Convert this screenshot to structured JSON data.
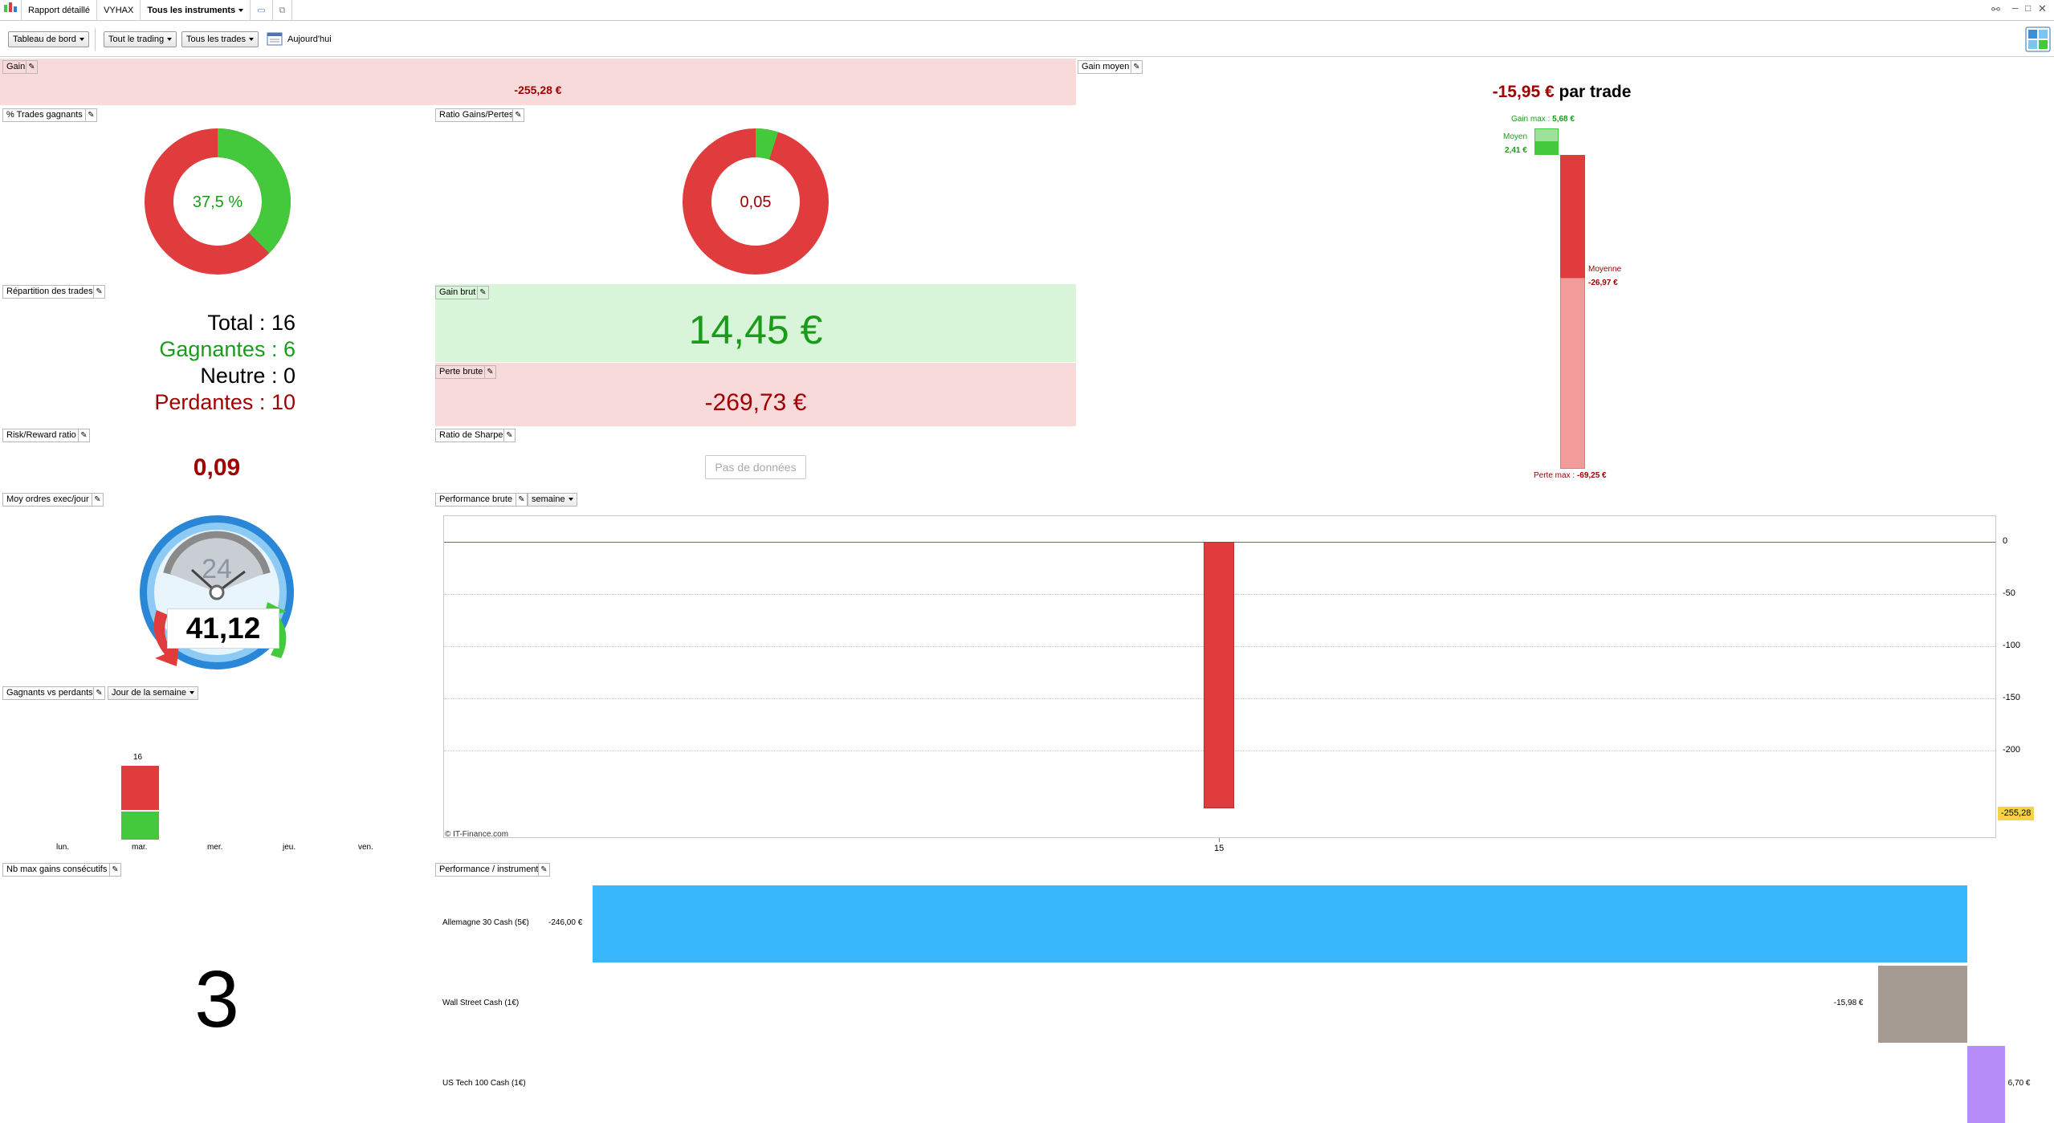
{
  "window": {
    "tab_report": "Rapport détaillé",
    "account": "VYHAX",
    "instruments_selector": "Tous les instruments"
  },
  "toolbar": {
    "dashboard": "Tableau de bord",
    "trading_filter": "Tout le trading",
    "trades_filter": "Tous les trades",
    "date_label": "Aujourd'hui"
  },
  "gain": {
    "label": "Gain",
    "value": "-255,28 €"
  },
  "avg_gain": {
    "label": "Gain moyen",
    "value": "-15,95 €",
    "suffix": "par trade",
    "max_gain_label": "Gain max :",
    "max_gain_value": "5,68 €",
    "avg_label": "Moyen",
    "avg_win_value": "2,41 €",
    "avg_loss_label": "Moyenne",
    "avg_loss_value": "-26,97 €",
    "max_loss_label": "Perte max :",
    "max_loss_value": "-69,25 €"
  },
  "win_pct": {
    "label": "% Trades gagnants",
    "value": "37,5 %",
    "fraction": 0.375
  },
  "ratio_gl": {
    "label": "Ratio Gains/Pertes",
    "value": "0,05",
    "fraction": 0.05
  },
  "distribution": {
    "label": "Répartition des trades",
    "total_label": "Total :",
    "total_value": "16",
    "win_label": "Gagnantes :",
    "win_value": "6",
    "neutral_label": "Neutre :",
    "neutral_value": "0",
    "loss_label": "Perdantes :",
    "loss_value": "10"
  },
  "gross_gain": {
    "label": "Gain brut",
    "value": "14,45 €"
  },
  "gross_loss": {
    "label": "Perte brute",
    "value": "-269,73 €"
  },
  "risk_reward": {
    "label": "Risk/Reward ratio",
    "value": "0,09"
  },
  "sharpe": {
    "label": "Ratio de Sharpe",
    "no_data": "Pas de données"
  },
  "orders_per_day": {
    "label": "Moy ordres exec/jour",
    "clock_number": "24",
    "value": "41,12"
  },
  "perf_gross": {
    "label": "Performance brute",
    "period": "semaine",
    "watermark": "© IT-Finance.com",
    "last_value_badge": "-255,28"
  },
  "win_loss": {
    "label": "Gagnants vs perdants",
    "grouping": "Jour de la semaine"
  },
  "max_consec": {
    "label": "Nb max gains consécutifs",
    "value": "3"
  },
  "perf_instrument": {
    "label": "Performance / instrument"
  },
  "colors": {
    "red": "#e03c3e",
    "green": "#43c93b",
    "pink_bg": "#f8dada",
    "green_bg": "#d9f5d9",
    "dark_red": "#a00000",
    "text_green": "#1a9c1a",
    "blue_bar": "#38b7fd",
    "taupe_bar": "#a69b93",
    "violet_bar": "#b58cf8"
  },
  "chart_data": [
    {
      "type": "bar",
      "name": "Performance brute",
      "categories": [
        "15"
      ],
      "values": [
        -255.28
      ],
      "ylim": [
        -255.28,
        0
      ],
      "yticks": [
        0,
        -50,
        -100,
        -150,
        -200
      ],
      "ytick_labels": [
        "0",
        "-50",
        "-100",
        "-150",
        "-200"
      ],
      "grid": true
    },
    {
      "type": "bar",
      "name": "Gagnants vs perdants",
      "categories": [
        "lun.",
        "mar.",
        "mer.",
        "jeu.",
        "ven."
      ],
      "series": [
        {
          "name": "Gagnants",
          "values": [
            0,
            6,
            0,
            0,
            0
          ]
        },
        {
          "name": "Perdants",
          "values": [
            0,
            10,
            0,
            0,
            0
          ]
        }
      ],
      "totals": [
        "",
        "16",
        "",
        "",
        ""
      ]
    },
    {
      "type": "bar",
      "name": "Performance / instrument",
      "categories": [
        "Allemagne 30 Cash (5€)",
        "Wall Street Cash (1€)",
        "US Tech 100 Cash (1€)"
      ],
      "values": [
        -246.0,
        -15.98,
        6.7
      ],
      "value_labels": [
        "-246,00 €",
        "-15,98 €",
        "6,70 €"
      ]
    }
  ]
}
